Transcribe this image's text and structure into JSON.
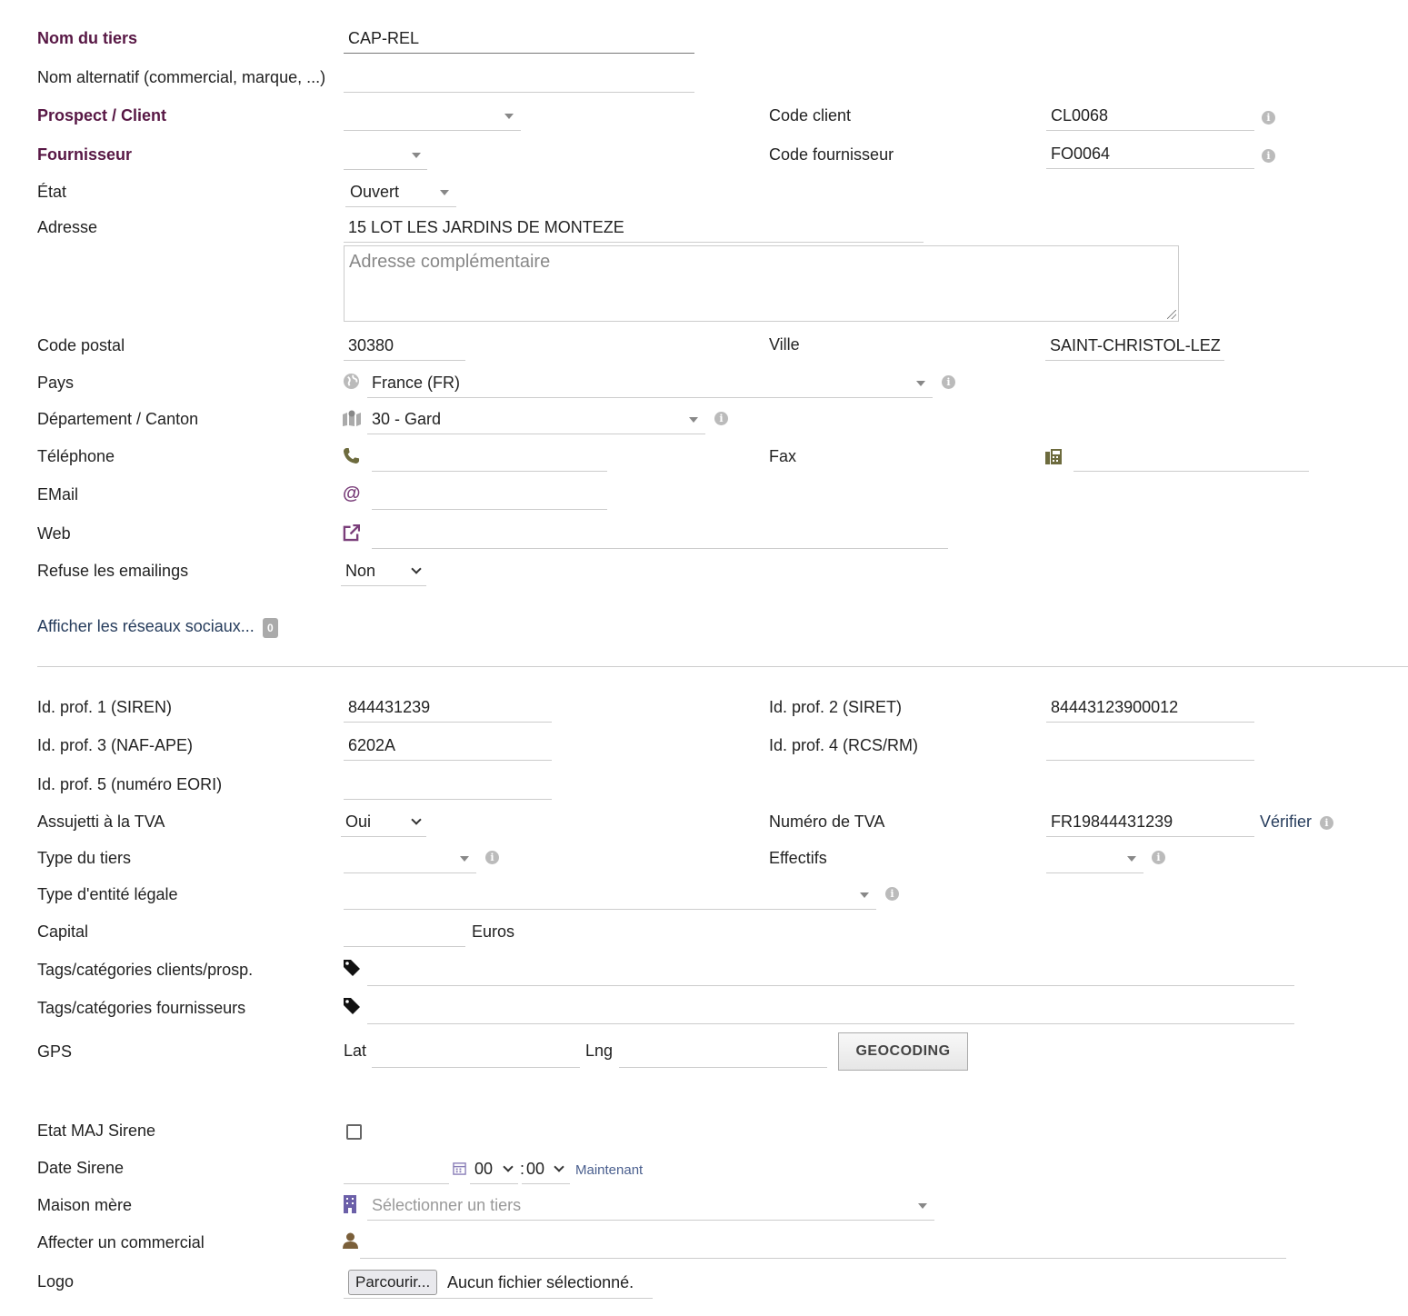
{
  "colors": {
    "required_label": "#581845",
    "link": "#263c5c",
    "icon_green": "#6d6b3e",
    "icon_purple": "#7a3e7a"
  },
  "fields": {
    "nom_tiers": {
      "label": "Nom du tiers",
      "value": "CAP-REL"
    },
    "nom_alt": {
      "label": "Nom alternatif (commercial, marque, ...)",
      "value": ""
    },
    "prospect": {
      "label": "Prospect / Client",
      "value": ""
    },
    "fournisseur": {
      "label": "Fournisseur",
      "value": ""
    },
    "code_client": {
      "label": "Code client",
      "value": "CL0068"
    },
    "code_fournisseur": {
      "label": "Code fournisseur",
      "value": "FO0064"
    },
    "etat": {
      "label": "État",
      "value": "Ouvert"
    },
    "adresse": {
      "label": "Adresse",
      "value": "15 LOT LES JARDINS DE MONTEZE",
      "complement_placeholder": "Adresse complémentaire"
    },
    "code_postal": {
      "label": "Code postal",
      "value": "30380"
    },
    "ville": {
      "label": "Ville",
      "value": "SAINT-CHRISTOL-LEZ"
    },
    "pays": {
      "label": "Pays",
      "value": "France (FR)"
    },
    "departement": {
      "label": "Département / Canton",
      "value": "30 - Gard"
    },
    "telephone": {
      "label": "Téléphone",
      "value": ""
    },
    "fax": {
      "label": "Fax",
      "value": ""
    },
    "email": {
      "label": "EMail",
      "value": "",
      "icon": "@"
    },
    "web": {
      "label": "Web",
      "value": ""
    },
    "refuse_emailings": {
      "label": "Refuse les emailings",
      "value": "Non"
    },
    "social": {
      "label": "Afficher les réseaux sociaux...",
      "count": "0"
    },
    "idprof1": {
      "label": "Id. prof. 1 (SIREN)",
      "value": "844431239"
    },
    "idprof2": {
      "label": "Id. prof. 2 (SIRET)",
      "value": "84443123900012"
    },
    "idprof3": {
      "label": "Id. prof. 3 (NAF-APE)",
      "value": "6202A"
    },
    "idprof4": {
      "label": "Id. prof. 4 (RCS/RM)",
      "value": ""
    },
    "idprof5": {
      "label": "Id. prof. 5 (numéro EORI)",
      "value": ""
    },
    "assujetti_tva": {
      "label": "Assujetti à la TVA",
      "value": "Oui"
    },
    "numero_tva": {
      "label": "Numéro de TVA",
      "value": "FR19844431239",
      "verify": "Vérifier"
    },
    "type_tiers": {
      "label": "Type du tiers",
      "value": ""
    },
    "effectifs": {
      "label": "Effectifs",
      "value": ""
    },
    "type_entite": {
      "label": "Type d'entité légale",
      "value": ""
    },
    "capital": {
      "label": "Capital",
      "value": "",
      "unit": "Euros"
    },
    "tags_clients": {
      "label": "Tags/catégories clients/prosp.",
      "value": ""
    },
    "tags_fournisseurs": {
      "label": "Tags/catégories fournisseurs",
      "value": ""
    },
    "gps": {
      "label": "GPS",
      "lat_label": "Lat",
      "lng_label": "Lng",
      "button": "GEOCODING"
    },
    "etat_maj_sirene": {
      "label": "Etat MAJ Sirene"
    },
    "date_sirene": {
      "label": "Date Sirene",
      "hour": "00",
      "minute": "00",
      "separator": ":",
      "now": "Maintenant"
    },
    "maison_mere": {
      "label": "Maison mère",
      "placeholder": "Sélectionner un tiers"
    },
    "commercial": {
      "label": "Affecter un commercial",
      "value": ""
    },
    "logo": {
      "label": "Logo",
      "button": "Parcourir...",
      "status": "Aucun fichier sélectionné."
    }
  },
  "icons": {
    "info": "i",
    "globe": "globe-icon",
    "map": "map-icon",
    "phone": "phone-icon",
    "fax": "fax-icon",
    "web": "external-link-icon",
    "tag": "tag-icon",
    "calendar": "calendar-icon",
    "building": "building-icon",
    "user": "user-icon"
  }
}
